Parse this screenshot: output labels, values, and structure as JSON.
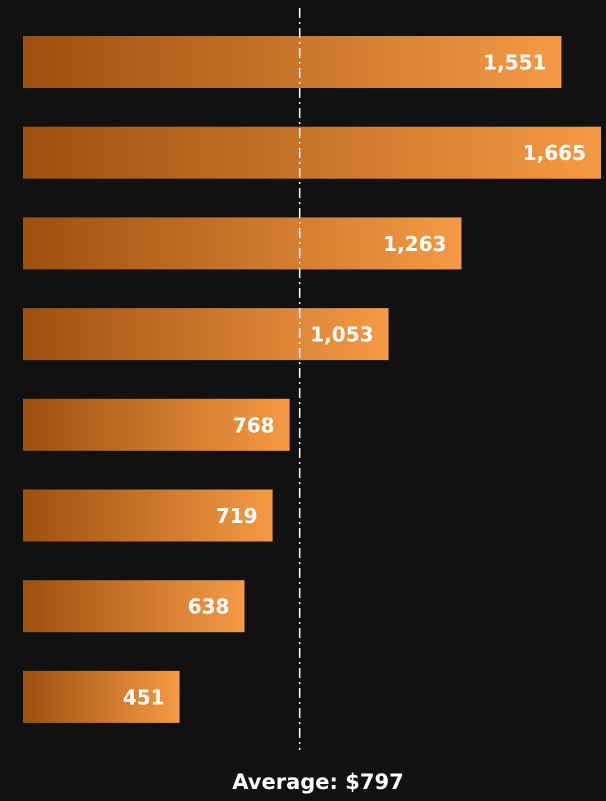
{
  "chart_data": {
    "type": "bar",
    "orientation": "horizontal",
    "categories": [
      null,
      null,
      null,
      null,
      null,
      null,
      null,
      null
    ],
    "values": [
      1551,
      1665,
      1263,
      1053,
      768,
      719,
      638,
      451
    ],
    "value_labels": [
      "1,551",
      "1,665",
      "1,263",
      "1,053",
      "768",
      "719",
      "638",
      "451"
    ],
    "color": "#f59a45",
    "average": {
      "value": 797,
      "label": "Average: $797"
    }
  }
}
